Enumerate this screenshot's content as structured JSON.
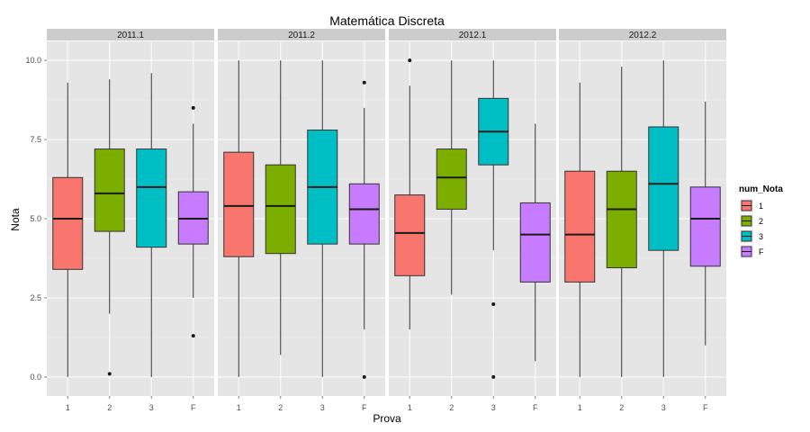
{
  "chart_data": {
    "type": "boxplot",
    "title": "Matemática Discreta",
    "xlabel": "Prova",
    "ylabel": "Nota",
    "ylim": [
      -0.6,
      10.6
    ],
    "yticks": [
      0.0,
      2.5,
      5.0,
      7.5,
      10.0
    ],
    "ytick_labels": [
      "0.0",
      "2.5",
      "5.0",
      "7.5",
      "10.0"
    ],
    "categories": [
      "1",
      "2",
      "3",
      "F"
    ],
    "grid": true,
    "legend": {
      "title": "num_Nota",
      "placement": "right",
      "entries": [
        {
          "label": "1",
          "color": "#F8766D"
        },
        {
          "label": "2",
          "color": "#7CAE00"
        },
        {
          "label": "3",
          "color": "#00BFC4"
        },
        {
          "label": "F",
          "color": "#C77CFF"
        }
      ]
    },
    "panels": [
      {
        "label": "2011.1",
        "boxes": [
          {
            "cat": "1",
            "min": 0.0,
            "q1": 3.4,
            "median": 5.0,
            "q3": 6.3,
            "max": 9.3,
            "outliers": []
          },
          {
            "cat": "2",
            "min": 2.0,
            "q1": 4.6,
            "median": 5.8,
            "q3": 7.2,
            "max": 9.4,
            "outliers": [
              0.1
            ]
          },
          {
            "cat": "3",
            "min": 0.0,
            "q1": 4.1,
            "median": 6.0,
            "q3": 7.2,
            "max": 9.6,
            "outliers": []
          },
          {
            "cat": "F",
            "min": 2.5,
            "q1": 4.2,
            "median": 5.0,
            "q3": 5.85,
            "max": 8.0,
            "outliers": [
              8.5,
              1.3
            ]
          }
        ]
      },
      {
        "label": "2011.2",
        "boxes": [
          {
            "cat": "1",
            "min": 0.0,
            "q1": 3.8,
            "median": 5.4,
            "q3": 7.1,
            "max": 10.0,
            "outliers": []
          },
          {
            "cat": "2",
            "min": 0.7,
            "q1": 3.9,
            "median": 5.4,
            "q3": 6.7,
            "max": 10.0,
            "outliers": []
          },
          {
            "cat": "3",
            "min": 0.0,
            "q1": 4.2,
            "median": 6.0,
            "q3": 7.8,
            "max": 10.0,
            "outliers": []
          },
          {
            "cat": "F",
            "min": 1.5,
            "q1": 4.2,
            "median": 5.3,
            "q3": 6.1,
            "max": 8.5,
            "outliers": [
              9.3,
              0.0
            ]
          }
        ]
      },
      {
        "label": "2012.1",
        "boxes": [
          {
            "cat": "1",
            "min": 1.5,
            "q1": 3.2,
            "median": 4.55,
            "q3": 5.75,
            "max": 9.2,
            "outliers": [
              10.0
            ]
          },
          {
            "cat": "2",
            "min": 2.6,
            "q1": 5.3,
            "median": 6.3,
            "q3": 7.2,
            "max": 10.0,
            "outliers": []
          },
          {
            "cat": "3",
            "min": 4.0,
            "q1": 6.7,
            "median": 7.75,
            "q3": 8.8,
            "max": 10.0,
            "outliers": [
              2.3,
              0.0
            ]
          },
          {
            "cat": "F",
            "min": 0.5,
            "q1": 3.0,
            "median": 4.5,
            "q3": 5.5,
            "max": 8.0,
            "outliers": []
          }
        ]
      },
      {
        "label": "2012.2",
        "boxes": [
          {
            "cat": "1",
            "min": 0.0,
            "q1": 3.0,
            "median": 4.5,
            "q3": 6.5,
            "max": 9.3,
            "outliers": []
          },
          {
            "cat": "2",
            "min": 0.0,
            "q1": 3.45,
            "median": 5.3,
            "q3": 6.5,
            "max": 9.8,
            "outliers": []
          },
          {
            "cat": "3",
            "min": 0.0,
            "q1": 4.0,
            "median": 6.1,
            "q3": 7.9,
            "max": 10.0,
            "outliers": []
          },
          {
            "cat": "F",
            "min": 1.0,
            "q1": 3.5,
            "median": 5.0,
            "q3": 6.0,
            "max": 8.7,
            "outliers": []
          }
        ]
      }
    ]
  }
}
